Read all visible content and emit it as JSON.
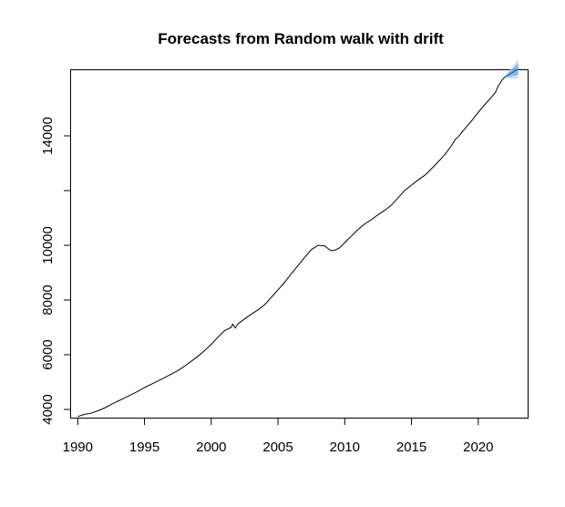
{
  "chart_data": {
    "type": "line",
    "title": "Forecasts from Random walk with drift",
    "xlabel": "",
    "ylabel": "",
    "xlim": [
      1989.5,
      2023.7
    ],
    "ylim": [
      3700,
      16400
    ],
    "xticks": [
      1990,
      1995,
      2000,
      2005,
      2010,
      2015,
      2020
    ],
    "yticks": [
      4000,
      6000,
      8000,
      10000,
      12000,
      14000
    ],
    "ytick_labels": [
      "4000",
      "6000",
      "8000",
      "10000",
      "",
      "14000"
    ],
    "grid": false,
    "legend": "none",
    "series": [
      {
        "x": [
          1990.0,
          1990.5,
          1991.0,
          1991.5,
          1992.0,
          1992.5,
          1993.0,
          1993.5,
          1994.0,
          1994.5,
          1995.0,
          1995.5,
          1996.0,
          1996.5,
          1997.0,
          1997.5,
          1998.0,
          1998.5,
          1999.0,
          1999.5,
          2000.0,
          2000.5,
          2001.0,
          2001.5,
          2001.6,
          2001.8,
          2002.0,
          2002.5,
          2003.0,
          2003.5,
          2004.0,
          2004.5,
          2005.0,
          2005.5,
          2006.0,
          2006.5,
          2007.0,
          2007.5,
          2008.0,
          2008.5,
          2008.8,
          2009.0,
          2009.3,
          2009.6,
          2010.0,
          2010.5,
          2011.0,
          2011.5,
          2012.0,
          2012.5,
          2013.0,
          2013.5,
          2014.0,
          2014.5,
          2015.0,
          2015.5,
          2016.0,
          2016.5,
          2017.0,
          2017.5,
          2018.0,
          2018.3,
          2018.5,
          2018.8,
          2019.0,
          2019.5,
          2020.0,
          2020.5,
          2021.0,
          2021.3,
          2021.5,
          2021.8,
          2022.0
        ],
        "values": [
          3740,
          3820,
          3860,
          3950,
          4050,
          4180,
          4300,
          4420,
          4540,
          4660,
          4800,
          4920,
          5040,
          5160,
          5290,
          5420,
          5580,
          5760,
          5940,
          6150,
          6380,
          6640,
          6880,
          7000,
          7120,
          6980,
          7120,
          7310,
          7480,
          7640,
          7830,
          8100,
          8370,
          8650,
          8960,
          9260,
          9560,
          9840,
          10000,
          9980,
          9860,
          9800,
          9830,
          9900,
          10100,
          10340,
          10580,
          10780,
          10940,
          11120,
          11280,
          11470,
          11740,
          12010,
          12200,
          12390,
          12560,
          12800,
          13050,
          13320,
          13650,
          13880,
          13960,
          14150,
          14260,
          14550,
          14860,
          15150,
          15420,
          15600,
          15820,
          16050,
          16150
        ]
      }
    ],
    "forecast": {
      "x": [
        2022.0,
        2022.2,
        2022.4,
        2022.6,
        2022.8,
        2023.0
      ],
      "mean": [
        16150,
        16210,
        16270,
        16330,
        16390,
        16450
      ],
      "lo80": [
        16150,
        16150,
        16170,
        16190,
        16210,
        16230
      ],
      "hi80": [
        16150,
        16270,
        16370,
        16470,
        16570,
        16670
      ],
      "lo95": [
        16150,
        16110,
        16100,
        16100,
        16100,
        16100
      ],
      "hi95": [
        16150,
        16310,
        16440,
        16560,
        16680,
        16800
      ],
      "colors": {
        "mean": "#1f6fd1",
        "band80": "#5b9bd5",
        "band95": "#b9d3ee"
      }
    },
    "line_color": "#000000"
  }
}
